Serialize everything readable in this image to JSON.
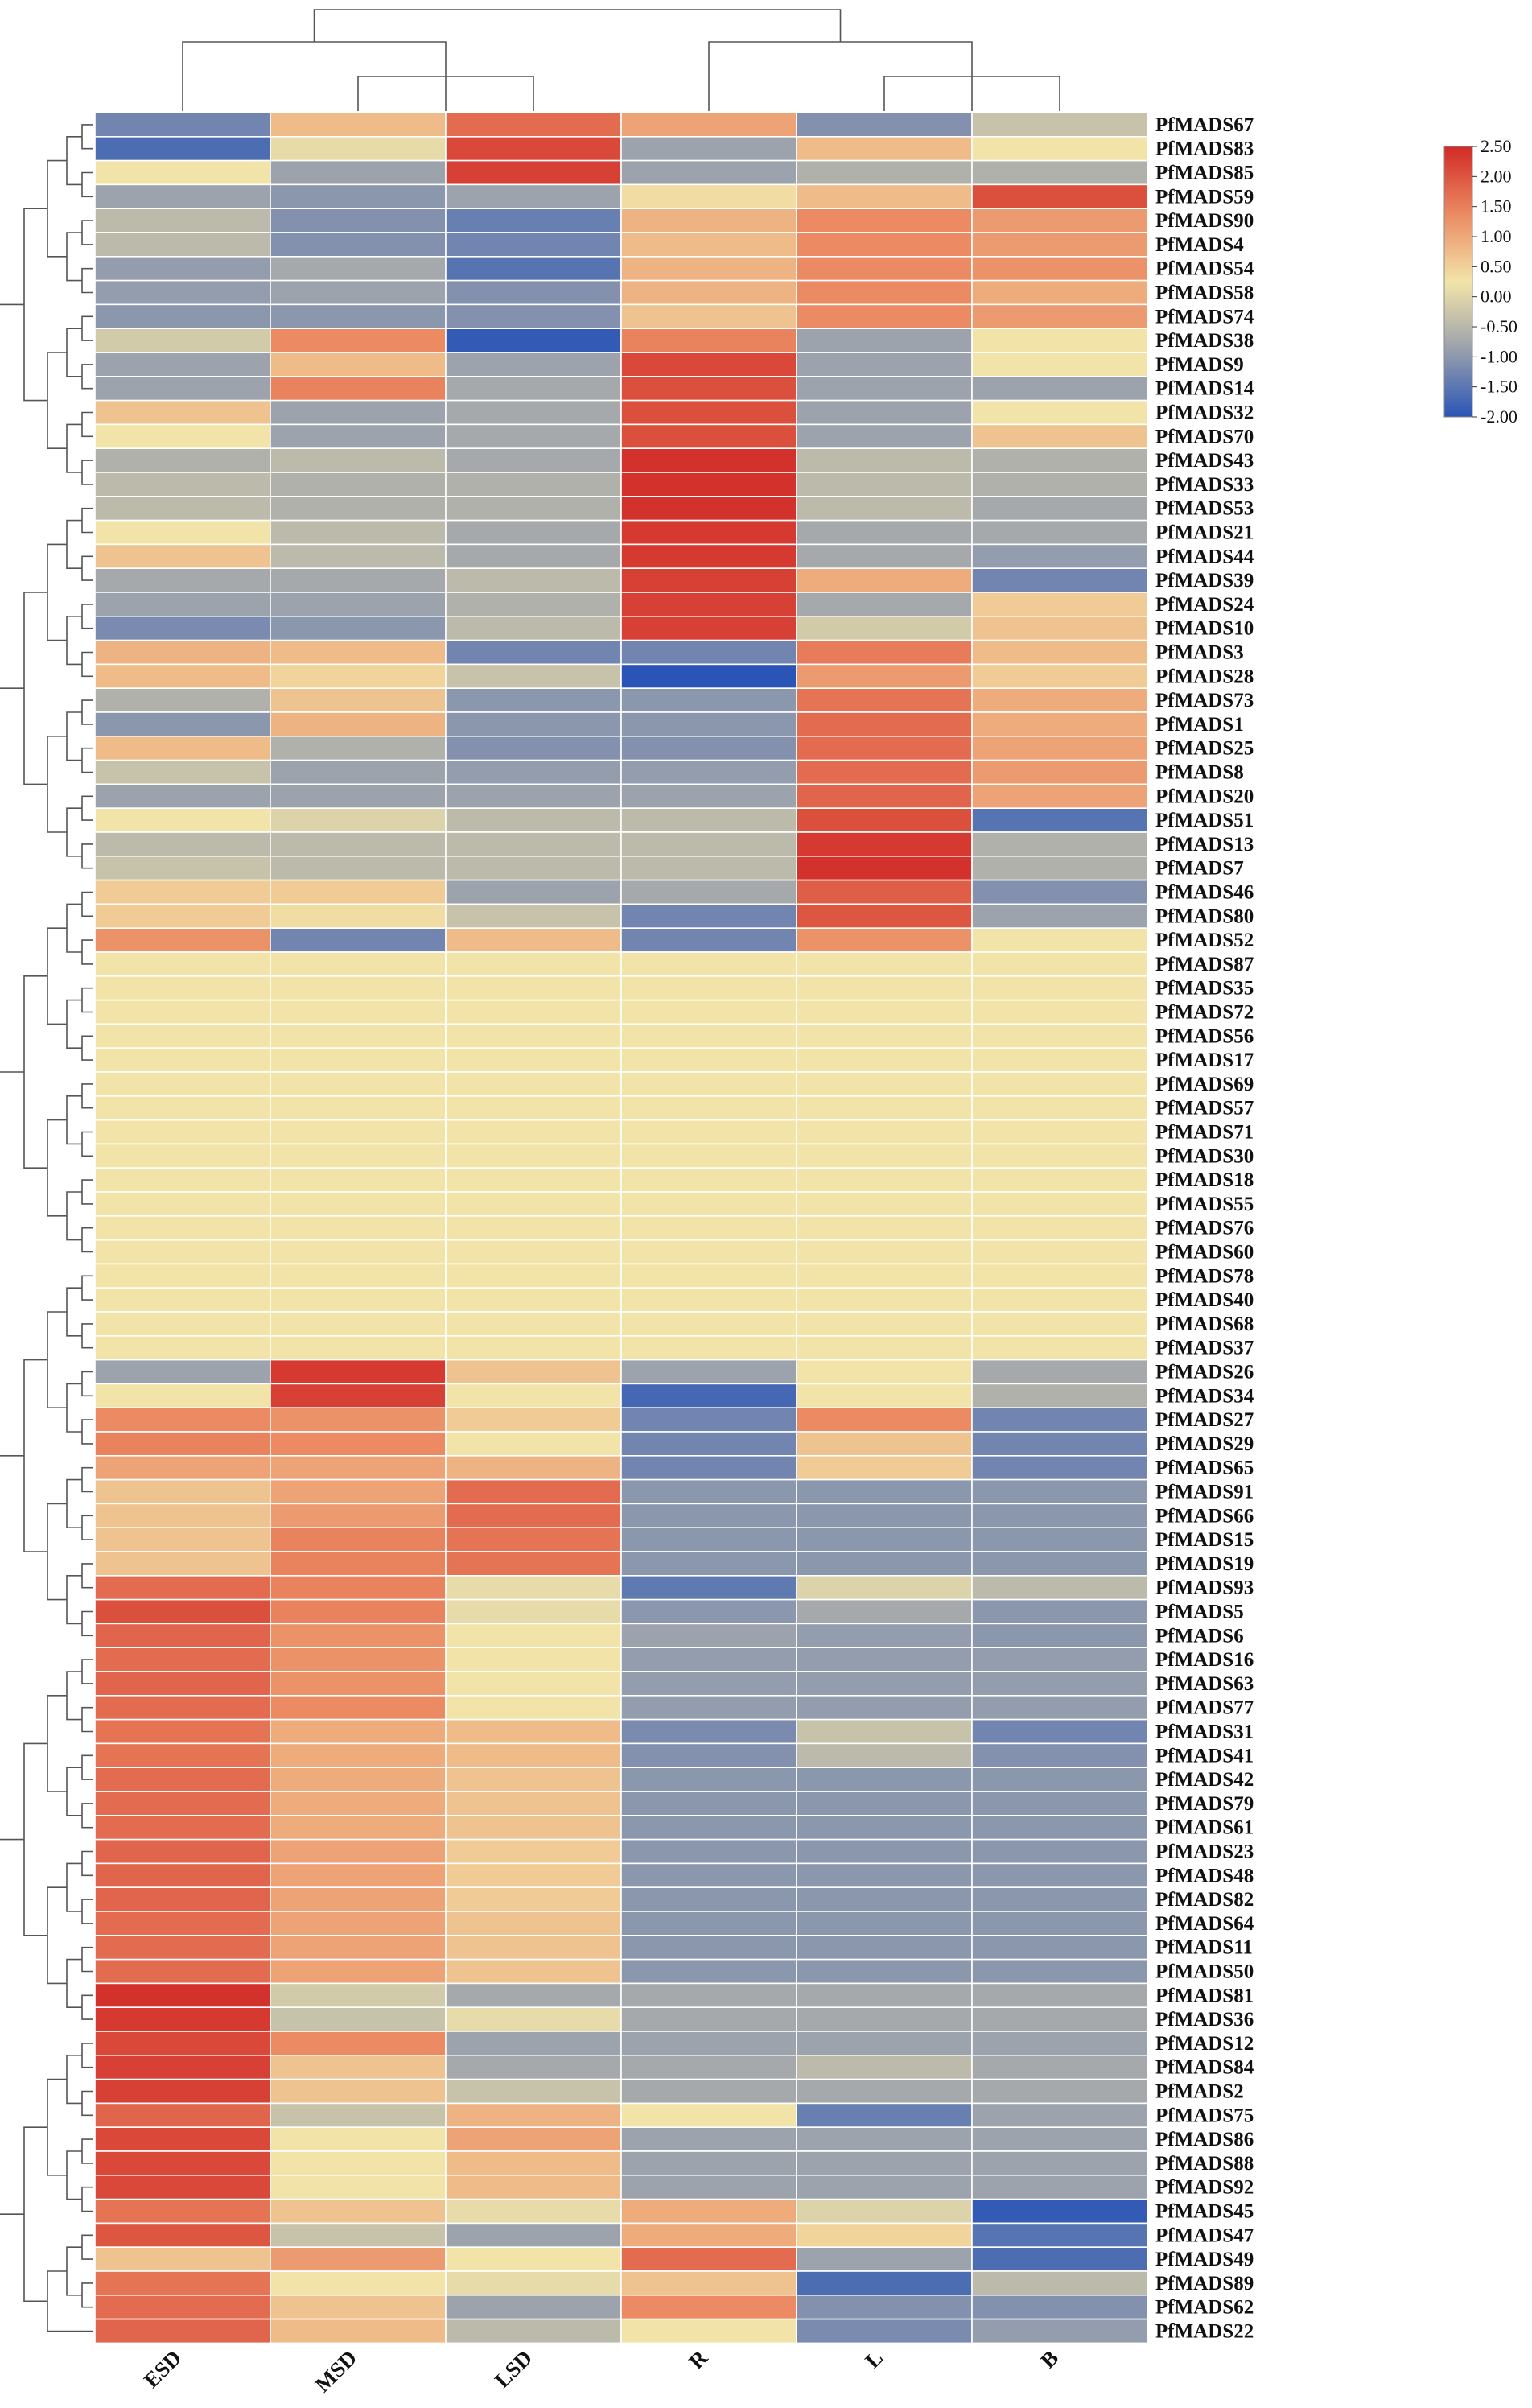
{
  "chart_data": {
    "type": "heatmap",
    "title": "",
    "columns": [
      "ESD",
      "MSD",
      "LSD",
      "R",
      "L",
      "B"
    ],
    "rows": [
      "PfMADS67",
      "PfMADS83",
      "PfMADS85",
      "PfMADS59",
      "PfMADS90",
      "PfMADS4",
      "PfMADS54",
      "PfMADS58",
      "PfMADS74",
      "PfMADS38",
      "PfMADS9",
      "PfMADS14",
      "PfMADS32",
      "PfMADS70",
      "PfMADS43",
      "PfMADS33",
      "PfMADS53",
      "PfMADS21",
      "PfMADS44",
      "PfMADS39",
      "PfMADS24",
      "PfMADS10",
      "PfMADS3",
      "PfMADS28",
      "PfMADS73",
      "PfMADS1",
      "PfMADS25",
      "PfMADS8",
      "PfMADS20",
      "PfMADS51",
      "PfMADS13",
      "PfMADS7",
      "PfMADS46",
      "PfMADS80",
      "PfMADS52",
      "PfMADS87",
      "PfMADS35",
      "PfMADS72",
      "PfMADS56",
      "PfMADS17",
      "PfMADS69",
      "PfMADS57",
      "PfMADS71",
      "PfMADS30",
      "PfMADS18",
      "PfMADS55",
      "PfMADS76",
      "PfMADS60",
      "PfMADS78",
      "PfMADS40",
      "PfMADS68",
      "PfMADS37",
      "PfMADS26",
      "PfMADS34",
      "PfMADS27",
      "PfMADS29",
      "PfMADS65",
      "PfMADS91",
      "PfMADS66",
      "PfMADS15",
      "PfMADS19",
      "PfMADS93",
      "PfMADS5",
      "PfMADS6",
      "PfMADS16",
      "PfMADS63",
      "PfMADS77",
      "PfMADS31",
      "PfMADS41",
      "PfMADS42",
      "PfMADS79",
      "PfMADS61",
      "PfMADS23",
      "PfMADS48",
      "PfMADS82",
      "PfMADS64",
      "PfMADS11",
      "PfMADS50",
      "PfMADS81",
      "PfMADS36",
      "PfMADS12",
      "PfMADS84",
      "PfMADS2",
      "PfMADS75",
      "PfMADS86",
      "PfMADS88",
      "PfMADS92",
      "PfMADS45",
      "PfMADS47",
      "PfMADS49",
      "PfMADS89",
      "PfMADS62",
      "PfMADS22"
    ],
    "values": [
      [
        -1.2,
        0.6,
        1.6,
        0.9,
        -1.0,
        -0.3
      ],
      [
        -1.6,
        0.0,
        2.1,
        -0.7,
        0.6,
        0.1
      ],
      [
        0.1,
        -0.7,
        2.2,
        -0.7,
        -0.5,
        -0.5
      ],
      [
        -0.7,
        -0.9,
        -0.7,
        0.2,
        0.6,
        2.0
      ],
      [
        -0.4,
        -1.0,
        -1.3,
        0.7,
        1.2,
        1.0
      ],
      [
        -0.4,
        -1.0,
        -1.2,
        0.6,
        1.2,
        1.0
      ],
      [
        -0.8,
        -0.6,
        -1.5,
        0.7,
        1.2,
        1.1
      ],
      [
        -0.8,
        -0.7,
        -1.0,
        0.7,
        1.2,
        0.8
      ],
      [
        -0.9,
        -0.9,
        -1.0,
        0.5,
        1.2,
        1.0
      ],
      [
        -0.2,
        1.2,
        -1.9,
        1.3,
        -0.7,
        0.1
      ],
      [
        -0.7,
        0.6,
        -0.7,
        2.1,
        -0.7,
        0.1
      ],
      [
        -0.7,
        1.3,
        -0.6,
        2.0,
        -0.7,
        -0.7
      ],
      [
        0.5,
        -0.7,
        -0.6,
        2.0,
        -0.7,
        0.1
      ],
      [
        0.1,
        -0.7,
        -0.6,
        2.0,
        -0.7,
        0.5
      ],
      [
        -0.5,
        -0.4,
        -0.6,
        2.4,
        -0.4,
        -0.5
      ],
      [
        -0.4,
        -0.5,
        -0.5,
        2.4,
        -0.4,
        -0.5
      ],
      [
        -0.4,
        -0.5,
        -0.5,
        2.4,
        -0.4,
        -0.6
      ],
      [
        0.1,
        -0.4,
        -0.6,
        2.3,
        -0.6,
        -0.6
      ],
      [
        0.5,
        -0.4,
        -0.6,
        2.3,
        -0.6,
        -0.8
      ],
      [
        -0.6,
        -0.6,
        -0.4,
        2.2,
        0.8,
        -1.2
      ],
      [
        -0.7,
        -0.7,
        -0.5,
        2.2,
        -0.6,
        0.4
      ],
      [
        -1.1,
        -0.9,
        -0.4,
        2.2,
        -0.2,
        0.5
      ],
      [
        0.7,
        0.6,
        -1.2,
        -1.2,
        1.4,
        0.6
      ],
      [
        0.6,
        0.3,
        -0.3,
        -2.0,
        1.0,
        0.4
      ],
      [
        -0.5,
        0.5,
        -0.9,
        -0.9,
        1.5,
        0.8
      ],
      [
        -0.9,
        0.7,
        -0.9,
        -0.9,
        1.6,
        0.8
      ],
      [
        0.6,
        -0.5,
        -1.0,
        -1.0,
        1.6,
        0.9
      ],
      [
        -0.3,
        -0.7,
        -0.8,
        -0.8,
        1.6,
        1.0
      ],
      [
        -0.7,
        -0.7,
        -0.7,
        -0.7,
        1.7,
        0.9
      ],
      [
        0.1,
        -0.1,
        -0.4,
        -0.4,
        2.0,
        -1.5
      ],
      [
        -0.4,
        -0.4,
        -0.4,
        -0.4,
        2.3,
        -0.5
      ],
      [
        -0.3,
        -0.4,
        -0.4,
        -0.4,
        2.4,
        -0.5
      ],
      [
        0.4,
        0.4,
        -0.7,
        -0.6,
        1.8,
        -1.0
      ],
      [
        0.4,
        0.2,
        -0.3,
        -1.2,
        1.9,
        -0.7
      ],
      [
        1.1,
        -1.2,
        0.6,
        -1.2,
        1.1,
        0.1
      ],
      [
        0.1,
        0.1,
        0.1,
        0.1,
        0.1,
        0.1
      ],
      [
        0.1,
        0.1,
        0.1,
        0.1,
        0.1,
        0.1
      ],
      [
        0.1,
        0.1,
        0.1,
        0.1,
        0.1,
        0.1
      ],
      [
        0.1,
        0.1,
        0.1,
        0.1,
        0.1,
        0.1
      ],
      [
        0.1,
        0.1,
        0.1,
        0.1,
        0.1,
        0.1
      ],
      [
        0.1,
        0.1,
        0.1,
        0.1,
        0.1,
        0.1
      ],
      [
        0.1,
        0.1,
        0.1,
        0.1,
        0.1,
        0.1
      ],
      [
        0.1,
        0.1,
        0.1,
        0.1,
        0.1,
        0.1
      ],
      [
        0.1,
        0.1,
        0.1,
        0.1,
        0.1,
        0.1
      ],
      [
        0.1,
        0.1,
        0.1,
        0.1,
        0.1,
        0.1
      ],
      [
        0.1,
        0.1,
        0.1,
        0.1,
        0.1,
        0.1
      ],
      [
        0.1,
        0.1,
        0.1,
        0.1,
        0.1,
        0.1
      ],
      [
        0.1,
        0.1,
        0.1,
        0.1,
        0.1,
        0.1
      ],
      [
        0.1,
        0.1,
        0.1,
        0.1,
        0.1,
        0.1
      ],
      [
        0.1,
        0.1,
        0.1,
        0.1,
        0.1,
        0.1
      ],
      [
        0.1,
        0.1,
        0.1,
        0.1,
        0.1,
        0.1
      ],
      [
        0.1,
        0.1,
        0.1,
        0.1,
        0.1,
        0.1
      ],
      [
        -0.7,
        2.3,
        0.5,
        -0.7,
        0.1,
        -0.6
      ],
      [
        0.1,
        2.2,
        0.1,
        -1.7,
        0.1,
        -0.5
      ],
      [
        1.2,
        1.1,
        0.4,
        -1.2,
        1.2,
        -1.2
      ],
      [
        1.3,
        1.2,
        0.1,
        -1.2,
        0.5,
        -1.2
      ],
      [
        0.9,
        0.9,
        0.7,
        -1.2,
        0.4,
        -1.2
      ],
      [
        0.5,
        0.9,
        1.6,
        -0.9,
        -0.9,
        -0.9
      ],
      [
        0.5,
        1.0,
        1.6,
        -0.9,
        -0.9,
        -0.9
      ],
      [
        0.5,
        1.3,
        1.5,
        -0.9,
        -0.9,
        -0.9
      ],
      [
        0.5,
        1.3,
        1.5,
        -0.9,
        -0.9,
        -0.9
      ],
      [
        1.6,
        1.3,
        0.0,
        -1.4,
        -0.1,
        -0.4
      ],
      [
        2.0,
        1.3,
        0.0,
        -0.9,
        -0.6,
        -0.9
      ],
      [
        1.7,
        1.1,
        0.1,
        -0.7,
        -0.8,
        -0.9
      ],
      [
        1.6,
        1.1,
        0.1,
        -0.8,
        -0.8,
        -0.8
      ],
      [
        1.7,
        1.1,
        0.1,
        -0.8,
        -0.8,
        -0.8
      ],
      [
        1.6,
        1.2,
        0.1,
        -0.8,
        -0.8,
        -0.8
      ],
      [
        1.5,
        0.8,
        0.6,
        -1.1,
        -0.3,
        -1.2
      ],
      [
        1.5,
        0.8,
        0.6,
        -1.0,
        -0.4,
        -1.0
      ],
      [
        1.6,
        0.8,
        0.5,
        -0.9,
        -0.9,
        -0.9
      ],
      [
        1.6,
        0.8,
        0.5,
        -0.9,
        -0.9,
        -0.9
      ],
      [
        1.6,
        0.8,
        0.5,
        -0.9,
        -0.9,
        -0.9
      ],
      [
        1.7,
        0.9,
        0.4,
        -0.9,
        -0.9,
        -0.9
      ],
      [
        1.7,
        0.9,
        0.4,
        -0.9,
        -0.9,
        -0.9
      ],
      [
        1.7,
        0.9,
        0.4,
        -0.9,
        -0.9,
        -0.9
      ],
      [
        1.6,
        0.9,
        0.5,
        -0.9,
        -0.9,
        -0.9
      ],
      [
        1.6,
        0.9,
        0.5,
        -0.9,
        -0.9,
        -0.9
      ],
      [
        1.6,
        0.9,
        0.5,
        -0.9,
        -0.9,
        -0.9
      ],
      [
        2.4,
        -0.2,
        -0.6,
        -0.6,
        -0.6,
        -0.6
      ],
      [
        2.3,
        -0.3,
        0.0,
        -0.6,
        -0.6,
        -0.6
      ],
      [
        2.1,
        1.2,
        -0.7,
        -0.7,
        -0.7,
        -0.7
      ],
      [
        2.2,
        0.5,
        -0.6,
        -0.6,
        -0.4,
        -0.6
      ],
      [
        2.2,
        0.5,
        -0.3,
        -0.6,
        -0.6,
        -0.6
      ],
      [
        1.7,
        -0.3,
        0.7,
        0.1,
        -1.3,
        -0.7
      ],
      [
        2.1,
        0.1,
        0.9,
        -0.7,
        -0.7,
        -0.7
      ],
      [
        2.1,
        0.1,
        0.6,
        -0.7,
        -0.7,
        -0.7
      ],
      [
        2.1,
        0.1,
        0.6,
        -0.7,
        -0.7,
        -0.7
      ],
      [
        1.5,
        0.5,
        0.0,
        0.8,
        -0.1,
        -1.9
      ],
      [
        1.9,
        -0.3,
        -0.7,
        0.8,
        0.3,
        -1.5
      ],
      [
        0.5,
        1.0,
        0.1,
        1.6,
        -0.7,
        -1.6
      ],
      [
        1.5,
        0.1,
        0.0,
        0.5,
        -1.6,
        -0.4
      ],
      [
        1.6,
        0.5,
        -0.7,
        1.2,
        -1.0,
        -1.0
      ],
      [
        1.7,
        0.6,
        -0.4,
        0.1,
        -1.1,
        -0.8
      ]
    ],
    "colorbar": {
      "min": -2.0,
      "max": 2.5,
      "ticks": [
        "2.50",
        "2.00",
        "1.50",
        "1.00",
        "0.50",
        "0.00",
        "-0.50",
        "-1.00",
        "-1.50",
        "-2.00"
      ],
      "tick_values": [
        2.5,
        2.0,
        1.5,
        1.0,
        0.5,
        0.0,
        -0.5,
        -1.0,
        -1.5,
        -2.0
      ],
      "colors": [
        "#d12a26",
        "#eb8a63",
        "#f2e4a9",
        "#a6a9ab",
        "#2a55b6"
      ]
    }
  }
}
